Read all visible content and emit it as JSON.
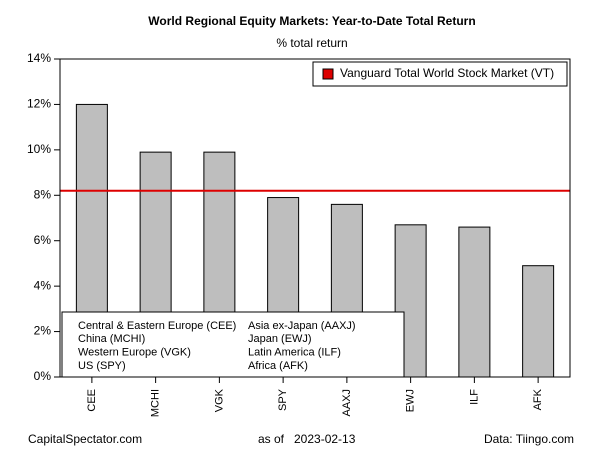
{
  "chart_data": {
    "type": "bar",
    "title": "World Regional Equity Markets: Year-to-Date Total Return",
    "subtitle": "% total return",
    "categories": [
      "CEE",
      "MCHI",
      "VGK",
      "SPY",
      "AAXJ",
      "EWJ",
      "ILF",
      "AFK"
    ],
    "values": [
      12.0,
      9.9,
      9.9,
      7.9,
      7.6,
      6.7,
      6.6,
      4.9
    ],
    "color": "#bebebe",
    "ylim": [
      0,
      14
    ],
    "yticks": [
      {
        "value": 0,
        "label": "0%"
      },
      {
        "value": 2,
        "label": "2%"
      },
      {
        "value": 4,
        "label": "4%"
      },
      {
        "value": 6,
        "label": "6%"
      },
      {
        "value": 8,
        "label": "8%"
      },
      {
        "value": 10,
        "label": "10%"
      },
      {
        "value": 12,
        "label": "12%"
      },
      {
        "value": 14,
        "label": "14%"
      }
    ],
    "reference_line": {
      "name": "Vanguard Total World Stock Market (VT)",
      "value": 8.2,
      "color": "#dd0000"
    },
    "legend_position": "top-right",
    "notes": [
      "Central & Eastern Europe (CEE)",
      "China (MCHI)",
      "Western Europe (VGK)",
      "US (SPY)",
      "Asia ex-Japan (AAXJ)",
      "Japan (EWJ)",
      "Latin America (ILF)",
      "Africa (AFK)"
    ],
    "footer": {
      "source_site": "CapitalSpectator.com",
      "as_of_label": "as of",
      "date": "2023-02-13",
      "data_source": "Data: Tiingo.com"
    }
  }
}
